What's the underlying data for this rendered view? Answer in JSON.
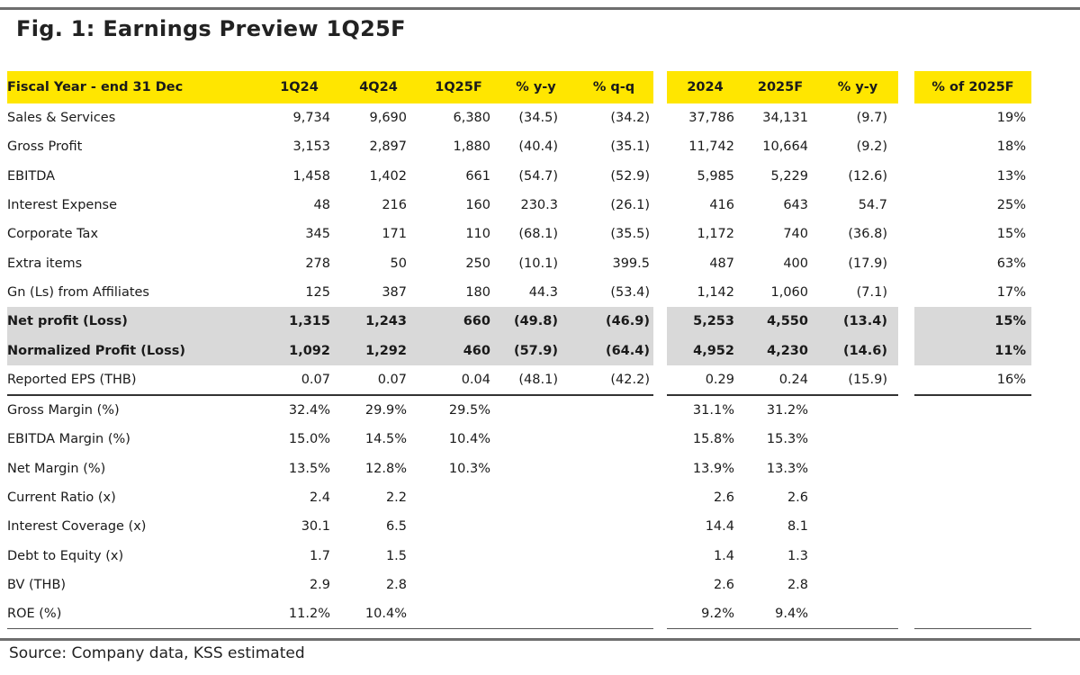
{
  "title": "Fig. 1:  Earnings Preview 1Q25F",
  "source": "Source: Company data, KSS estimated",
  "header": [
    "Fiscal Year - end 31 Dec",
    "1Q24",
    "4Q24",
    "1Q25F",
    "% y-y",
    "% q-q",
    "2024",
    "2025F",
    "% y-y",
    "% of 2025F"
  ],
  "rows": [
    {
      "label": "Sales & Services",
      "v": [
        "9,734",
        "9,690",
        "6,380",
        "(34.5)",
        "(34.2)",
        "37,786",
        "34,131",
        "(9.7)",
        "19%"
      ]
    },
    {
      "label": "Gross Profit",
      "v": [
        "3,153",
        "2,897",
        "1,880",
        "(40.4)",
        "(35.1)",
        "11,742",
        "10,664",
        "(9.2)",
        "18%"
      ]
    },
    {
      "label": "EBITDA",
      "v": [
        "1,458",
        "1,402",
        "661",
        "(54.7)",
        "(52.9)",
        "5,985",
        "5,229",
        "(12.6)",
        "13%"
      ]
    },
    {
      "label": "Interest Expense",
      "v": [
        "48",
        "216",
        "160",
        "230.3",
        "(26.1)",
        "416",
        "643",
        "54.7",
        "25%"
      ]
    },
    {
      "label": "Corporate Tax",
      "v": [
        "345",
        "171",
        "110",
        "(68.1)",
        "(35.5)",
        "1,172",
        "740",
        "(36.8)",
        "15%"
      ]
    },
    {
      "label": "Extra items",
      "v": [
        "278",
        "50",
        "250",
        "(10.1)",
        "399.5",
        "487",
        "400",
        "(17.9)",
        "63%"
      ]
    },
    {
      "label": "Gn (Ls) from Affiliates",
      "v": [
        "125",
        "387",
        "180",
        "44.3",
        "(53.4)",
        "1,142",
        "1,060",
        "(7.1)",
        "17%"
      ]
    },
    {
      "label": "Net profit (Loss)",
      "v": [
        "1,315",
        "1,243",
        "660",
        "(49.8)",
        "(46.9)",
        "5,253",
        "4,550",
        "(13.4)",
        "15%"
      ]
    },
    {
      "label": "Normalized Profit (Loss)",
      "v": [
        "1,092",
        "1,292",
        "460",
        "(57.9)",
        "(64.4)",
        "4,952",
        "4,230",
        "(14.6)",
        "11%"
      ]
    },
    {
      "label": "Reported EPS (THB)",
      "v": [
        "0.07",
        "0.07",
        "0.04",
        "(48.1)",
        "(42.2)",
        "0.29",
        "0.24",
        "(15.9)",
        "16%"
      ]
    },
    {
      "label": "Gross Margin (%)",
      "v": [
        "32.4%",
        "29.9%",
        "29.5%",
        "",
        "",
        "31.1%",
        "31.2%",
        "",
        ""
      ]
    },
    {
      "label": "EBITDA Margin (%)",
      "v": [
        "15.0%",
        "14.5%",
        "10.4%",
        "",
        "",
        "15.8%",
        "15.3%",
        "",
        ""
      ]
    },
    {
      "label": "Net Margin (%)",
      "v": [
        "13.5%",
        "12.8%",
        "10.3%",
        "",
        "",
        "13.9%",
        "13.3%",
        "",
        ""
      ]
    },
    {
      "label": "Current Ratio (x)",
      "v": [
        "2.4",
        "2.2",
        "",
        "",
        "",
        "2.6",
        "2.6",
        "",
        ""
      ]
    },
    {
      "label": "Interest Coverage (x)",
      "v": [
        "30.1",
        "6.5",
        "",
        "",
        "",
        "14.4",
        "8.1",
        "",
        ""
      ]
    },
    {
      "label": "Debt to Equity (x)",
      "v": [
        "1.7",
        "1.5",
        "",
        "",
        "",
        "1.4",
        "1.3",
        "",
        ""
      ]
    },
    {
      "label": "BV (THB)",
      "v": [
        "2.9",
        "2.8",
        "",
        "",
        "",
        "2.6",
        "2.8",
        "",
        ""
      ]
    },
    {
      "label": "ROE (%)",
      "v": [
        "11.2%",
        "10.4%",
        "",
        "",
        "",
        "9.2%",
        "9.4%",
        "",
        ""
      ]
    }
  ],
  "highlight_color": "#ffe600",
  "gray_color": "#d9d9d9"
}
